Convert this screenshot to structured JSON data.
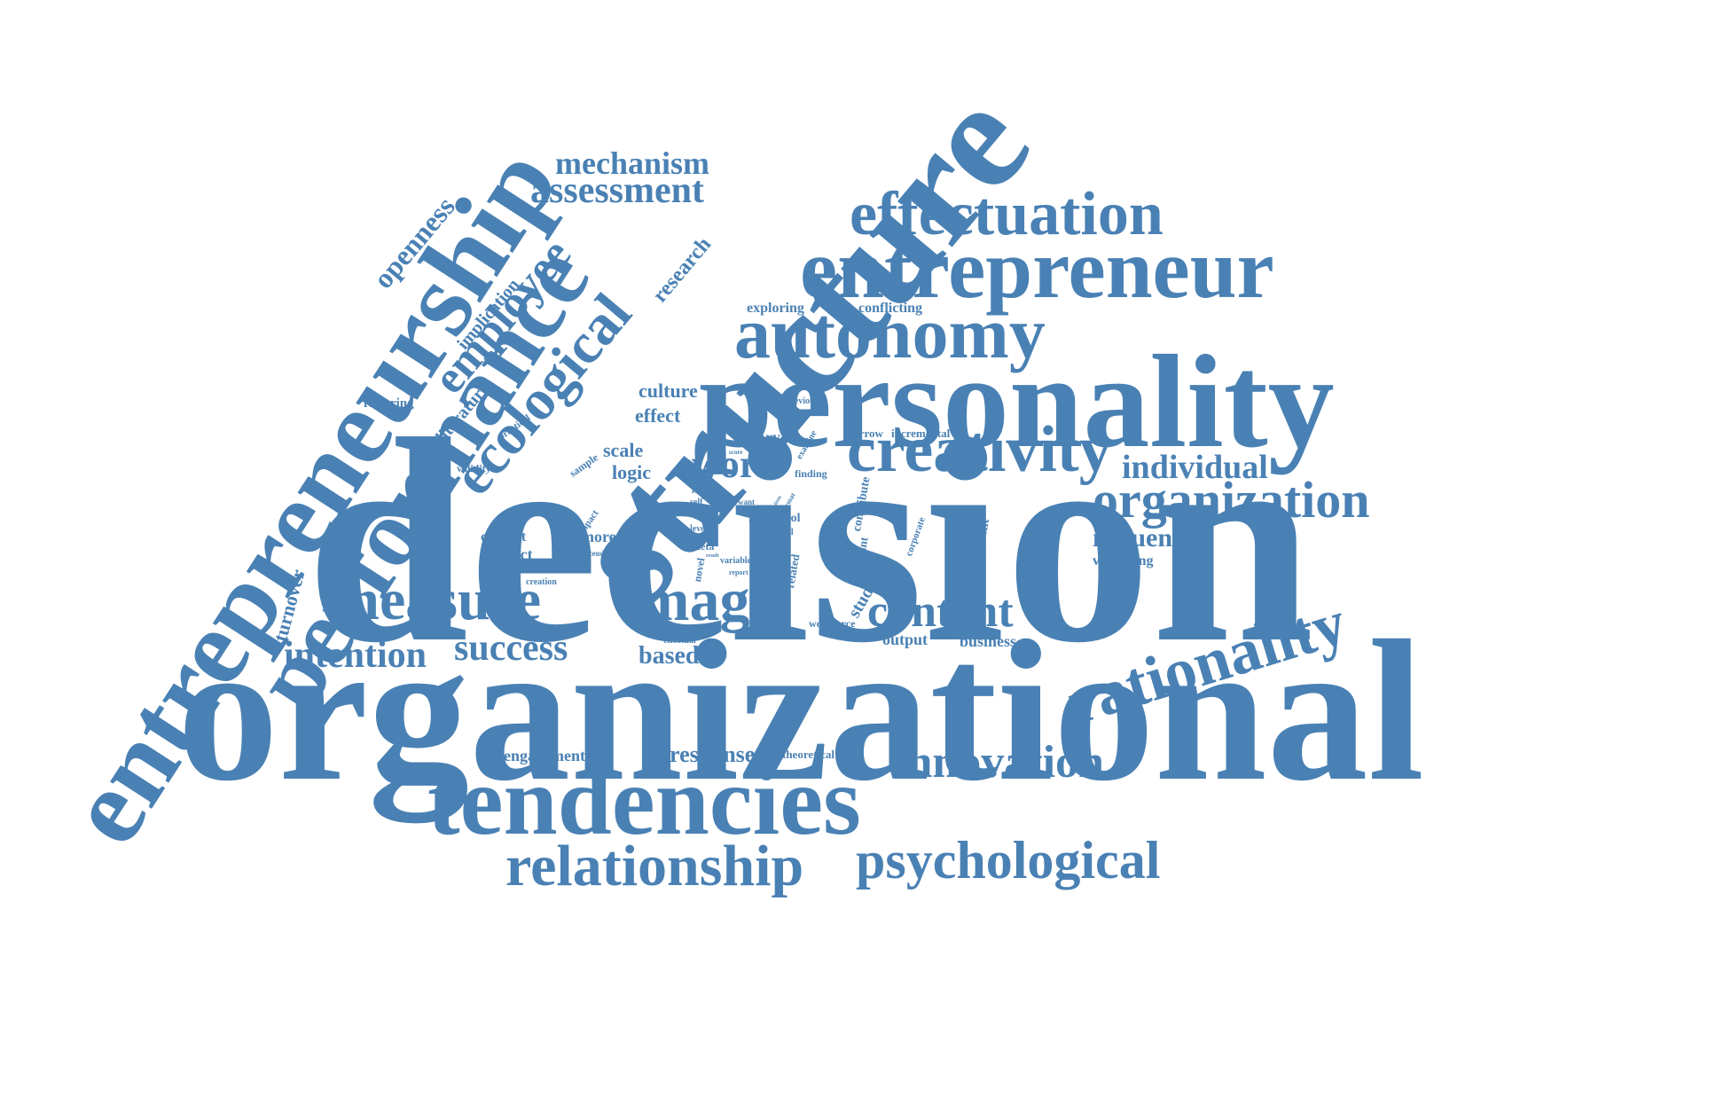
{
  "colors": {
    "word": "#4a81b4",
    "background": "#ffffff"
  },
  "words": [
    "decision",
    "organizational",
    "structure",
    "personality",
    "entrepreneurship",
    "performance",
    "tendencies",
    "entrepreneur",
    "effectuation",
    "autonomy",
    "creativity",
    "rationality",
    "organization",
    "image",
    "measure",
    "content",
    "innovation",
    "relationship",
    "psychological",
    "ecological",
    "employee",
    "assessment",
    "mechanism",
    "success",
    "intention",
    "individual",
    "influence",
    "work",
    "openness",
    "research",
    "implication",
    "literature",
    "fostering",
    "practical",
    "validity",
    "exploring",
    "conflicting",
    "culture",
    "effect",
    "scale",
    "logic",
    "theory",
    "narrow",
    "incremental",
    "previous",
    "sample",
    "insight",
    "factor",
    "locus",
    "self",
    "test",
    "level",
    "meta",
    "novel",
    "variable",
    "report",
    "control",
    "causal",
    "quit",
    "want",
    "item",
    "format",
    "examine",
    "score",
    "finding",
    "option",
    "testing",
    "impact",
    "extend",
    "more",
    "trait",
    "current",
    "predict",
    "creation",
    "turnover",
    "related",
    "contribute",
    "important",
    "study",
    "corporate",
    "management",
    "validating",
    "workforce",
    "output",
    "business",
    "based",
    "effectual",
    "engagement",
    "response",
    "theoretical",
    "time",
    "result"
  ]
}
